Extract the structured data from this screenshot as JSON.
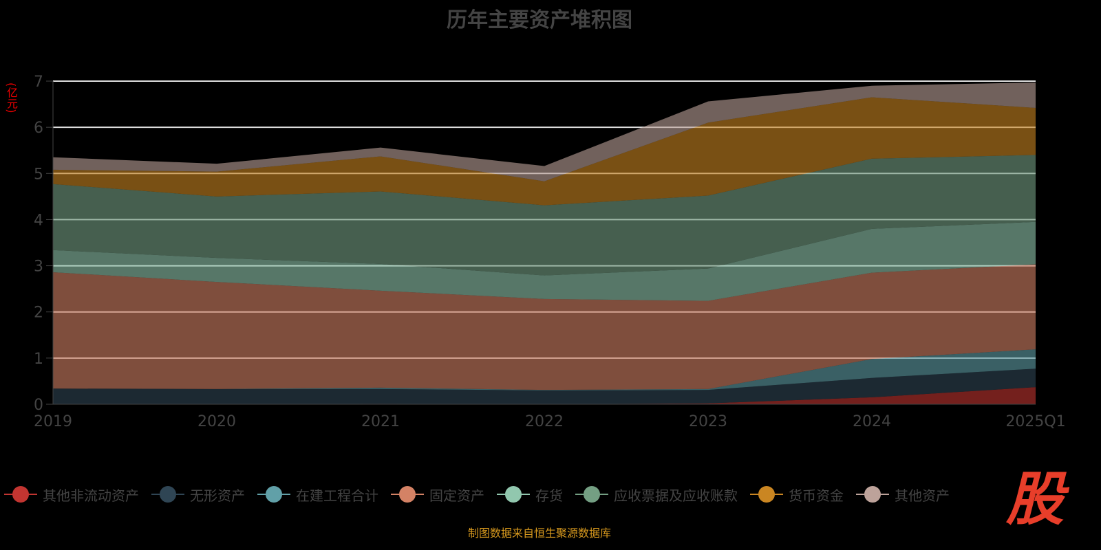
{
  "chart_data": {
    "type": "area",
    "stacked": true,
    "title": "历年主要资产堆积图",
    "ylabel": "(亿元)",
    "ylim": [
      0,
      7
    ],
    "yticks": [
      0,
      1,
      2,
      3,
      4,
      5,
      6,
      7
    ],
    "categories": [
      "2019",
      "2020",
      "2021",
      "2022",
      "2023",
      "2024",
      "2025Q1"
    ],
    "series": [
      {
        "name": "其他非流动资产",
        "color": "#c23531",
        "values": [
          0,
          0,
          0.01,
          0,
          0.02,
          0.15,
          0.37
        ]
      },
      {
        "name": "无形资产",
        "color": "#2f4554",
        "values": [
          0.34,
          0.33,
          0.32,
          0.3,
          0.29,
          0.42,
          0.4
        ]
      },
      {
        "name": "在建工程合计",
        "color": "#61a0a8",
        "values": [
          0,
          0,
          0.03,
          0.01,
          0.02,
          0.41,
          0.42
        ]
      },
      {
        "name": "固定资产",
        "color": "#d48265",
        "values": [
          2.52,
          2.32,
          2.1,
          1.97,
          1.91,
          1.87,
          1.84
        ]
      },
      {
        "name": "存货",
        "color": "#91c7ae",
        "values": [
          0.48,
          0.52,
          0.58,
          0.51,
          0.7,
          0.95,
          0.92
        ]
      },
      {
        "name": "应收票据及应收账款",
        "color": "#749f83",
        "values": [
          1.43,
          1.33,
          1.57,
          1.52,
          1.58,
          1.52,
          1.45
        ]
      },
      {
        "name": "货币资金",
        "color": "#ca8622",
        "values": [
          0.31,
          0.54,
          0.76,
          0.52,
          1.58,
          1.33,
          1.02
        ]
      },
      {
        "name": "其他资产",
        "color": "#bda29a",
        "values": [
          0.27,
          0.17,
          0.19,
          0.33,
          0.46,
          0.25,
          0.55
        ]
      }
    ],
    "legend_position": "bottom",
    "grid": true
  },
  "source": "制图数据来自恒生聚源数据库",
  "logo": "股"
}
